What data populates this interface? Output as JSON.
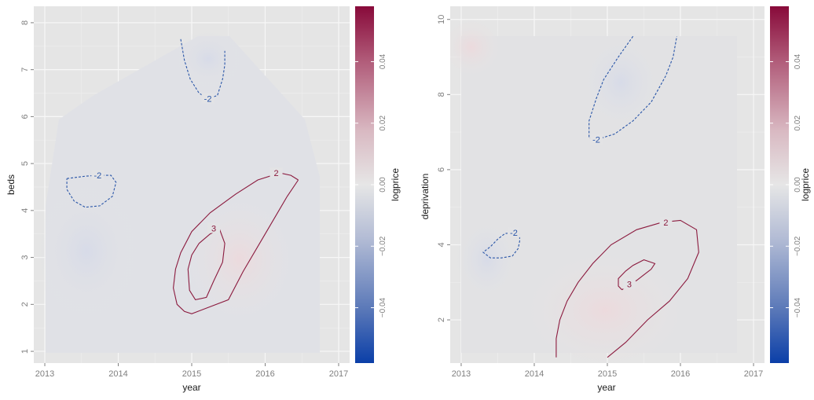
{
  "colors": {
    "panel_bg": "#e5e5e5",
    "grid": "#f5f5f5",
    "positive": "#8b1a3e",
    "negative": "#2a56a8",
    "fill_tint_neg": "#dcdfe9",
    "fill_tint_pos": "#ecdede"
  },
  "chart_data": [
    {
      "type": "heatmap",
      "xlabel": "year",
      "ylabel": "beds",
      "xlim": [
        2012.85,
        2017.15
      ],
      "ylim": [
        0.75,
        8.35
      ],
      "x_ticks": [
        "2013",
        "2014",
        "2015",
        "2016",
        "2017"
      ],
      "y_ticks": [
        "1",
        "2",
        "3",
        "4",
        "5",
        "6",
        "7",
        "8"
      ],
      "x_tick_values": [
        2013,
        2014,
        2015,
        2016,
        2017
      ],
      "y_tick_values": [
        1,
        2,
        3,
        4,
        5,
        6,
        7,
        8
      ],
      "colorbar": {
        "title": "logprice",
        "ticks": [
          "−0.04",
          "−0.02",
          "0.00",
          "0.02",
          "0.04"
        ],
        "tick_values": [
          -0.04,
          -0.02,
          0.0,
          0.02,
          0.04
        ],
        "range": [
          -0.058,
          0.058
        ]
      },
      "contours": [
        {
          "label": "2",
          "sign": "positive",
          "label_at": [
            2016.15,
            4.8
          ],
          "points": [
            [
              2016.45,
              4.65
            ],
            [
              2016.3,
              4.3
            ],
            [
              2016.0,
              3.5
            ],
            [
              2015.7,
              2.7
            ],
            [
              2015.5,
              2.1
            ],
            [
              2015.0,
              1.8
            ],
            [
              2014.9,
              1.85
            ],
            [
              2014.8,
              2.0
            ],
            [
              2014.75,
              2.35
            ],
            [
              2014.78,
              2.75
            ],
            [
              2014.85,
              3.1
            ],
            [
              2015.0,
              3.55
            ],
            [
              2015.25,
              3.95
            ],
            [
              2015.6,
              4.35
            ],
            [
              2015.9,
              4.65
            ],
            [
              2016.2,
              4.8
            ],
            [
              2016.35,
              4.75
            ],
            [
              2016.45,
              4.65
            ]
          ]
        },
        {
          "label": "3",
          "sign": "positive",
          "label_at": [
            2015.3,
            3.62
          ],
          "points": [
            [
              2015.38,
              3.6
            ],
            [
              2015.45,
              3.3
            ],
            [
              2015.42,
              2.9
            ],
            [
              2015.3,
              2.5
            ],
            [
              2015.2,
              2.15
            ],
            [
              2015.05,
              2.1
            ],
            [
              2014.97,
              2.3
            ],
            [
              2014.95,
              2.75
            ],
            [
              2015.0,
              3.05
            ],
            [
              2015.1,
              3.3
            ],
            [
              2015.25,
              3.5
            ],
            [
              2015.38,
              3.6
            ]
          ]
        },
        {
          "label": "-2",
          "sign": "negative",
          "label_at": [
            2015.22,
            6.38
          ],
          "points": [
            [
              2014.85,
              7.65
            ],
            [
              2014.9,
              7.2
            ],
            [
              2014.98,
              6.8
            ],
            [
              2015.1,
              6.5
            ],
            [
              2015.22,
              6.38
            ],
            [
              2015.35,
              6.45
            ],
            [
              2015.42,
              6.8
            ],
            [
              2015.45,
              7.1
            ],
            [
              2015.45,
              7.4
            ]
          ]
        },
        {
          "label": "-2",
          "sign": "negative",
          "label_at": [
            2013.72,
            4.75
          ],
          "points": [
            [
              2013.3,
              4.68
            ],
            [
              2013.55,
              4.73
            ],
            [
              2013.72,
              4.75
            ],
            [
              2013.9,
              4.75
            ],
            [
              2013.97,
              4.6
            ],
            [
              2013.92,
              4.3
            ],
            [
              2013.75,
              4.1
            ],
            [
              2013.55,
              4.07
            ],
            [
              2013.4,
              4.2
            ],
            [
              2013.3,
              4.45
            ],
            [
              2013.3,
              4.68
            ]
          ]
        }
      ]
    },
    {
      "type": "heatmap",
      "xlabel": "year",
      "ylabel": "deprivation",
      "xlim": [
        2012.85,
        2017.15
      ],
      "ylim": [
        0.85,
        10.35
      ],
      "x_ticks": [
        "2013",
        "2014",
        "2015",
        "2016",
        "2017"
      ],
      "y_ticks": [
        "2",
        "4",
        "6",
        "8",
        "10"
      ],
      "x_tick_values": [
        2013,
        2014,
        2015,
        2016,
        2017
      ],
      "y_tick_values": [
        2,
        4,
        6,
        8,
        10
      ],
      "colorbar": {
        "title": "logprice",
        "ticks": [
          "−0.04",
          "−0.02",
          "0.00",
          "0.02",
          "0.04"
        ],
        "tick_values": [
          -0.04,
          -0.02,
          0.0,
          0.02,
          0.04
        ],
        "range": [
          -0.058,
          0.058
        ]
      },
      "contours": [
        {
          "label": "2",
          "sign": "positive",
          "label_at": [
            2015.8,
            4.6
          ],
          "points": [
            [
              2014.3,
              1.0
            ],
            [
              2014.3,
              1.5
            ],
            [
              2014.35,
              2.0
            ],
            [
              2014.45,
              2.5
            ],
            [
              2014.6,
              3.0
            ],
            [
              2014.8,
              3.5
            ],
            [
              2015.05,
              4.0
            ],
            [
              2015.4,
              4.4
            ],
            [
              2015.75,
              4.6
            ],
            [
              2016.0,
              4.65
            ],
            [
              2016.22,
              4.4
            ],
            [
              2016.25,
              3.8
            ],
            [
              2016.1,
              3.1
            ],
            [
              2015.85,
              2.5
            ],
            [
              2015.55,
              2.0
            ],
            [
              2015.25,
              1.4
            ],
            [
              2015.0,
              1.0
            ]
          ]
        },
        {
          "label": "3",
          "sign": "positive",
          "label_at": [
            2015.3,
            2.95
          ],
          "points": [
            [
              2015.2,
              2.8
            ],
            [
              2015.3,
              2.95
            ],
            [
              2015.4,
              3.05
            ],
            [
              2015.5,
              3.2
            ],
            [
              2015.6,
              3.35
            ],
            [
              2015.65,
              3.5
            ],
            [
              2015.5,
              3.6
            ],
            [
              2015.35,
              3.45
            ],
            [
              2015.25,
              3.3
            ],
            [
              2015.15,
              3.1
            ],
            [
              2015.15,
              2.9
            ],
            [
              2015.2,
              2.8
            ]
          ]
        },
        {
          "label": "-2",
          "sign": "negative",
          "label_at": [
            2014.85,
            6.8
          ],
          "points": [
            [
              2015.35,
              9.55
            ],
            [
              2015.15,
              9.0
            ],
            [
              2014.95,
              8.4
            ],
            [
              2014.85,
              7.9
            ],
            [
              2014.75,
              7.3
            ],
            [
              2014.75,
              6.85
            ],
            [
              2014.85,
              6.8
            ],
            [
              2015.1,
              6.95
            ],
            [
              2015.35,
              7.3
            ],
            [
              2015.6,
              7.8
            ],
            [
              2015.8,
              8.5
            ],
            [
              2015.9,
              9.0
            ],
            [
              2015.95,
              9.55
            ]
          ]
        },
        {
          "label": "-2",
          "sign": "negative",
          "label_at": [
            2013.72,
            4.32
          ],
          "points": [
            [
              2013.8,
              4.3
            ],
            [
              2013.72,
              4.32
            ],
            [
              2013.6,
              4.3
            ],
            [
              2013.5,
              4.15
            ],
            [
              2013.4,
              3.95
            ],
            [
              2013.3,
              3.8
            ],
            [
              2013.4,
              3.65
            ],
            [
              2013.55,
              3.65
            ],
            [
              2013.7,
              3.7
            ],
            [
              2013.78,
              3.9
            ],
            [
              2013.8,
              4.1
            ],
            [
              2013.8,
              4.3
            ]
          ]
        }
      ]
    }
  ]
}
